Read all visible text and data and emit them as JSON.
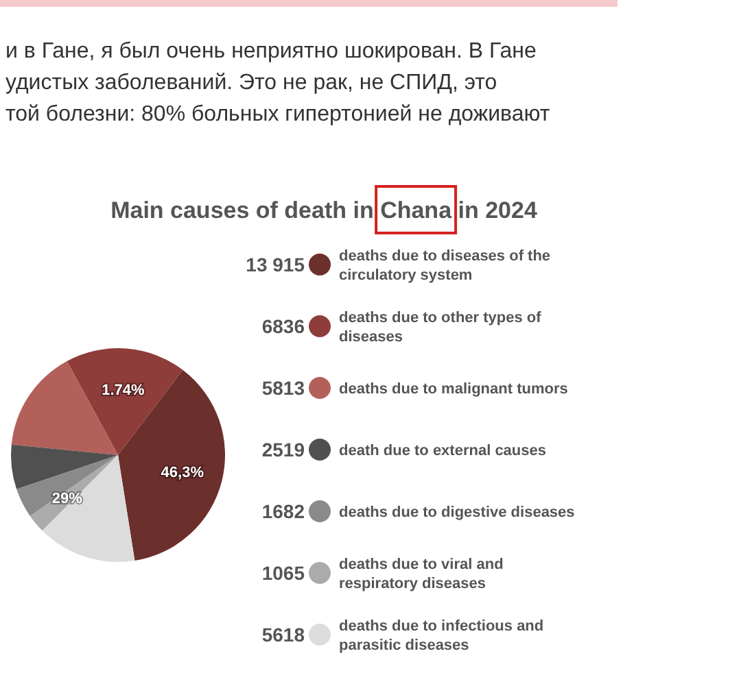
{
  "chart_data": {
    "type": "pie",
    "title": "Main causes of death in Chana in 2024",
    "categories": [
      "deaths due to diseases of the circulatory system",
      "deaths due to other types of diseases",
      "deaths due to malignant tumors",
      "death due to external causes",
      "deaths due to digestive diseases",
      "deaths due to viral and respiratory diseases",
      "deaths due to infectious and parasitic diseases"
    ],
    "values": [
      13915,
      6836,
      5813,
      2519,
      1682,
      1065,
      5618
    ],
    "colors": [
      "#6b2f2c",
      "#8e3d3a",
      "#b4605a",
      "#505050",
      "#8a8a8a",
      "#ababab",
      "#dcdcdc"
    ],
    "value_labels": [
      "13 915",
      "6836",
      "5813",
      "2519",
      "1682",
      "1065",
      "5618"
    ],
    "legend": "right",
    "annotations": [
      "и в Гане, я был очень неприятно шокирован. В Гане",
      "удистых заболеваний. Это не рак, не СПИД, это",
      "той болезни: 80% больных гипертонией не доживают",
      {
        "text": "46,3%",
        "x": "deaths due to diseases of the circulatory system"
      },
      {
        "text": "1.74%",
        "x": "deaths due to other types of diseases"
      },
      {
        "text": "29%",
        "x": "deaths due to viral and respiratory diseases"
      }
    ]
  }
}
